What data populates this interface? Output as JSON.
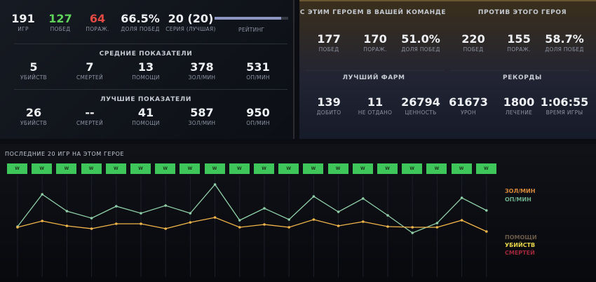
{
  "summary": {
    "games": {
      "v": "191",
      "l": "ИГР"
    },
    "wins": {
      "v": "127",
      "l": "ПОБЕД"
    },
    "losses": {
      "v": "64",
      "l": "ПОРАЖ."
    },
    "winrate": {
      "v": "66.5%",
      "l": "ДОЛЯ ПОБЕД"
    },
    "streak": {
      "v": "20 (20)",
      "l": "СЕРИЯ (ЛУЧШАЯ)"
    },
    "rating": {
      "l": "РЕЙТИНГ",
      "fill_percent": 90
    }
  },
  "average": {
    "title": "СРЕДНИЕ ПОКАЗАТЕЛИ",
    "items": [
      {
        "v": "5",
        "l": "УБИЙСТВ"
      },
      {
        "v": "7",
        "l": "СМЕРТЕЙ"
      },
      {
        "v": "13",
        "l": "ПОМОЩИ"
      },
      {
        "v": "378",
        "l": "ЗОЛ/МИН"
      },
      {
        "v": "531",
        "l": "ОП/МИН"
      }
    ]
  },
  "best": {
    "title": "ЛУЧШИЕ ПОКАЗАТЕЛИ",
    "items": [
      {
        "v": "26",
        "l": "УБИЙСТВ"
      },
      {
        "v": "--",
        "l": "СМЕРТЕЙ"
      },
      {
        "v": "41",
        "l": "ПОМОЩИ"
      },
      {
        "v": "587",
        "l": "ЗОЛ/МИН"
      },
      {
        "v": "950",
        "l": "ОП/МИН"
      }
    ]
  },
  "with_hero": {
    "title": "С ЭТИМ ГЕРОЕМ В ВАШЕЙ КОМАНДЕ",
    "items": [
      {
        "v": "177",
        "l": "ПОБЕД"
      },
      {
        "v": "170",
        "l": "ПОРАЖ."
      },
      {
        "v": "51.0%",
        "l": "ДОЛЯ ПОБЕД"
      }
    ]
  },
  "against_hero": {
    "title": "ПРОТИВ ЭТОГО ГЕРОЯ",
    "items": [
      {
        "v": "220",
        "l": "ПОБЕД"
      },
      {
        "v": "155",
        "l": "ПОРАЖ."
      },
      {
        "v": "58.7%",
        "l": "ДОЛЯ ПОБЕД"
      }
    ]
  },
  "best_farm": {
    "title": "ЛУЧШИЙ ФАРМ",
    "items": [
      {
        "v": "139",
        "l": "ДОБИТО"
      },
      {
        "v": "11",
        "l": "НЕ ОТДАНО"
      },
      {
        "v": "26794",
        "l": "ЦЕННОСТЬ"
      }
    ]
  },
  "records": {
    "title": "РЕКОРДЫ",
    "items": [
      {
        "v": "61673",
        "l": "УРОН"
      },
      {
        "v": "1800",
        "l": "ЛЕЧЕНИЕ"
      },
      {
        "v": "1:06:55",
        "l": "ВРЕМЯ ИГРЫ"
      }
    ]
  },
  "recent": {
    "title": "ПОСЛЕДНИЕ 20 ИГР НА ЭТОМ ГЕРОЕ",
    "results": [
      "W",
      "W",
      "W",
      "W",
      "W",
      "W",
      "W",
      "W",
      "W",
      "W",
      "W",
      "W",
      "W",
      "W",
      "W",
      "W",
      "W",
      "W",
      "W",
      "W"
    ],
    "legend": [
      {
        "label": "ЗОЛ/МИН",
        "color": "#d98a3a"
      },
      {
        "label": "ОП/МИН",
        "color": "#6fae8a"
      },
      {
        "label": "ПОМОЩИ",
        "color": "#6b5a48"
      },
      {
        "label": "УБИЙСТВ",
        "color": "#e8d84a"
      },
      {
        "label": "СМЕРТЕЙ",
        "color": "#a0283c"
      }
    ]
  },
  "chart_data": {
    "type": "line",
    "x": [
      1,
      2,
      3,
      4,
      5,
      6,
      7,
      8,
      9,
      10,
      11,
      12,
      13,
      14,
      15,
      16,
      17,
      18,
      19,
      20
    ],
    "series": [
      {
        "name": "ОП/МИН",
        "color": "#8fcfa8",
        "values": [
          17,
          63,
          39,
          29,
          46,
          36,
          47,
          36,
          77,
          26,
          43,
          27,
          60,
          38,
          57,
          33,
          8,
          22,
          58,
          40
        ]
      },
      {
        "name": "ЗОЛ/МИН",
        "color": "#f0b54a",
        "values": [
          16,
          25,
          18,
          14,
          21,
          21,
          14,
          23,
          30,
          16,
          20,
          16,
          27,
          18,
          24,
          17,
          16,
          16,
          26,
          10
        ]
      }
    ],
    "ylim": [
      0,
      100
    ],
    "grid": "vertical",
    "legend": "right"
  }
}
